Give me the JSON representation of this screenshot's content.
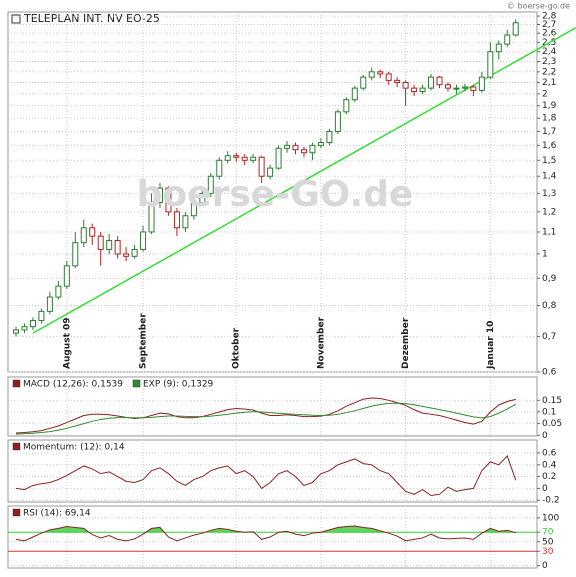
{
  "header": {
    "title": "TELEPLAN INT. NV",
    "symbol": "EO-25",
    "copyright": "© boerse-go.de",
    "watermark": "boerse-GO.de"
  },
  "chart_data": [
    {
      "type": "candlestick",
      "log_scale": true,
      "grid": true,
      "up_color": "#2e7d32",
      "down_color": "#b22222",
      "categories": [
        null,
        null,
        null,
        null,
        null,
        null,
        "August 09",
        null,
        null,
        null,
        null,
        null,
        null,
        null,
        null,
        "September",
        null,
        null,
        null,
        null,
        null,
        null,
        null,
        null,
        null,
        null,
        "Oktober",
        null,
        null,
        null,
        null,
        null,
        null,
        null,
        null,
        null,
        "November",
        null,
        null,
        null,
        null,
        null,
        null,
        null,
        null,
        null,
        "Dezember",
        null,
        null,
        null,
        null,
        null,
        null,
        null,
        null,
        null,
        "Januar 10",
        null,
        null,
        null
      ],
      "ohlc": [
        [
          0.71,
          0.73,
          0.7,
          0.72
        ],
        [
          0.72,
          0.74,
          0.71,
          0.73
        ],
        [
          0.73,
          0.76,
          0.72,
          0.75
        ],
        [
          0.75,
          0.79,
          0.74,
          0.78
        ],
        [
          0.78,
          0.85,
          0.77,
          0.83
        ],
        [
          0.83,
          0.89,
          0.82,
          0.87
        ],
        [
          0.87,
          0.97,
          0.86,
          0.95
        ],
        [
          0.95,
          1.1,
          0.94,
          1.05
        ],
        [
          1.05,
          1.16,
          1.03,
          1.12
        ],
        [
          1.12,
          1.14,
          1.04,
          1.08
        ],
        [
          1.08,
          1.1,
          0.95,
          1.02
        ],
        [
          1.02,
          1.09,
          1.0,
          1.06
        ],
        [
          1.06,
          1.08,
          0.98,
          1.0
        ],
        [
          1.0,
          1.03,
          0.97,
          0.99
        ],
        [
          0.99,
          1.04,
          0.98,
          1.02
        ],
        [
          1.02,
          1.13,
          1.01,
          1.1
        ],
        [
          1.1,
          1.3,
          1.09,
          1.25
        ],
        [
          1.25,
          1.36,
          1.22,
          1.33
        ],
        [
          1.33,
          1.34,
          1.18,
          1.2
        ],
        [
          1.2,
          1.22,
          1.08,
          1.12
        ],
        [
          1.12,
          1.2,
          1.1,
          1.18
        ],
        [
          1.18,
          1.27,
          1.16,
          1.25
        ],
        [
          1.25,
          1.32,
          1.23,
          1.3
        ],
        [
          1.3,
          1.42,
          1.28,
          1.4
        ],
        [
          1.4,
          1.52,
          1.38,
          1.5
        ],
        [
          1.5,
          1.56,
          1.48,
          1.53
        ],
        [
          1.53,
          1.55,
          1.49,
          1.52
        ],
        [
          1.52,
          1.54,
          1.47,
          1.5
        ],
        [
          1.5,
          1.54,
          1.48,
          1.52
        ],
        [
          1.52,
          1.53,
          1.36,
          1.4
        ],
        [
          1.4,
          1.47,
          1.38,
          1.45
        ],
        [
          1.45,
          1.6,
          1.44,
          1.58
        ],
        [
          1.58,
          1.63,
          1.55,
          1.6
        ],
        [
          1.6,
          1.62,
          1.54,
          1.57
        ],
        [
          1.57,
          1.59,
          1.52,
          1.55
        ],
        [
          1.55,
          1.62,
          1.5,
          1.6
        ],
        [
          1.6,
          1.65,
          1.58,
          1.62
        ],
        [
          1.62,
          1.72,
          1.6,
          1.7
        ],
        [
          1.7,
          1.87,
          1.68,
          1.85
        ],
        [
          1.85,
          1.97,
          1.83,
          1.95
        ],
        [
          1.95,
          2.07,
          1.93,
          2.05
        ],
        [
          2.05,
          2.17,
          2.03,
          2.15
        ],
        [
          2.15,
          2.24,
          2.12,
          2.2
        ],
        [
          2.2,
          2.22,
          2.14,
          2.18
        ],
        [
          2.18,
          2.2,
          2.08,
          2.12
        ],
        [
          2.12,
          2.15,
          2.06,
          2.1
        ],
        [
          2.1,
          2.12,
          1.9,
          2.05
        ],
        [
          2.05,
          2.08,
          1.98,
          2.02
        ],
        [
          2.02,
          2.08,
          2.0,
          2.05
        ],
        [
          2.05,
          2.18,
          2.03,
          2.15
        ],
        [
          2.15,
          2.16,
          2.05,
          2.08
        ],
        [
          2.08,
          2.1,
          2.02,
          2.05
        ],
        [
          2.05,
          2.08,
          2.0,
          2.05
        ],
        [
          2.05,
          2.09,
          2.02,
          2.06
        ],
        [
          2.06,
          2.08,
          1.98,
          2.03
        ],
        [
          2.03,
          2.2,
          2.01,
          2.15
        ],
        [
          2.15,
          2.5,
          2.13,
          2.4
        ],
        [
          2.4,
          2.52,
          2.32,
          2.48
        ],
        [
          2.48,
          2.64,
          2.45,
          2.58
        ],
        [
          2.58,
          2.76,
          2.56,
          2.72
        ]
      ],
      "trendline": {
        "x": [
          2,
          59
        ],
        "y": [
          0.71,
          2.3
        ],
        "color": "#33dd33"
      },
      "ylim": [
        0.6,
        2.85
      ],
      "yticks": [
        0.6,
        {
          "value": 0.7,
          "label": "0,7"
        },
        {
          "value": 0.8,
          "label": "0,8"
        },
        {
          "value": 0.9,
          "label": "0,9"
        },
        1,
        {
          "value": 1.1,
          "label": "1,1"
        },
        {
          "value": 1.2,
          "label": "1,2"
        },
        {
          "value": 1.3,
          "label": "1,3"
        },
        {
          "value": 1.4,
          "label": "1,4"
        },
        {
          "value": 1.5,
          "label": "1,5"
        },
        {
          "value": 1.6,
          "label": "1,6"
        },
        {
          "value": 1.7,
          "label": "1,7"
        },
        {
          "value": 1.8,
          "label": "1,8"
        },
        {
          "value": 1.9,
          "label": "1,9"
        },
        2,
        {
          "value": 2.1,
          "label": "2,1"
        },
        {
          "value": 2.2,
          "label": "2,2"
        },
        {
          "value": 2.3,
          "label": "2,3"
        },
        {
          "value": 2.4,
          "label": "2,4"
        },
        {
          "value": 2.5,
          "label": "2,5"
        },
        {
          "value": 2.6,
          "label": "2,6"
        },
        {
          "value": 2.7,
          "label": "2,7"
        },
        {
          "value": 2.8,
          "label": "2,8"
        }
      ]
    },
    {
      "type": "line",
      "grid": true,
      "series": [
        {
          "name": "MACD (12,26): 0,1539",
          "color": "#8b2020",
          "values": [
            0.01,
            0.012,
            0.015,
            0.02,
            0.03,
            0.04,
            0.055,
            0.07,
            0.085,
            0.09,
            0.09,
            0.088,
            0.083,
            0.077,
            0.072,
            0.075,
            0.085,
            0.095,
            0.092,
            0.08,
            0.075,
            0.075,
            0.08,
            0.09,
            0.1,
            0.11,
            0.115,
            0.112,
            0.108,
            0.095,
            0.085,
            0.085,
            0.088,
            0.085,
            0.08,
            0.08,
            0.082,
            0.09,
            0.105,
            0.125,
            0.14,
            0.155,
            0.16,
            0.158,
            0.15,
            0.14,
            0.128,
            0.11,
            0.095,
            0.09,
            0.085,
            0.075,
            0.065,
            0.055,
            0.048,
            0.06,
            0.1,
            0.13,
            0.145,
            0.154
          ]
        },
        {
          "name": "EXP (9): 0,1329",
          "color": "#2e8b2e",
          "values": [
            0.005,
            0.007,
            0.009,
            0.012,
            0.016,
            0.022,
            0.03,
            0.04,
            0.05,
            0.06,
            0.068,
            0.073,
            0.076,
            0.076,
            0.075,
            0.075,
            0.077,
            0.08,
            0.083,
            0.083,
            0.081,
            0.08,
            0.08,
            0.082,
            0.086,
            0.09,
            0.095,
            0.099,
            0.101,
            0.1,
            0.097,
            0.094,
            0.092,
            0.09,
            0.088,
            0.086,
            0.085,
            0.086,
            0.09,
            0.097,
            0.105,
            0.115,
            0.125,
            0.132,
            0.137,
            0.138,
            0.136,
            0.131,
            0.124,
            0.117,
            0.11,
            0.103,
            0.095,
            0.087,
            0.079,
            0.075,
            0.08,
            0.095,
            0.113,
            0.133
          ]
        }
      ],
      "ylim": [
        -0.003,
        0.25
      ],
      "yticks": [
        0,
        0.05,
        0.1,
        0.15
      ]
    },
    {
      "type": "line",
      "grid": true,
      "series": [
        {
          "name": "Momentum: (12): 0,14",
          "color": "#8b2020",
          "values": [
            0,
            -0.02,
            0.05,
            0.08,
            0.1,
            0.15,
            0.22,
            0.3,
            0.38,
            0.33,
            0.25,
            0.28,
            0.2,
            0.12,
            0.1,
            0.15,
            0.3,
            0.35,
            0.25,
            0.12,
            0.05,
            0.15,
            0.2,
            0.3,
            0.35,
            0.38,
            0.25,
            0.3,
            0.2,
            0.0,
            0.1,
            0.25,
            0.3,
            0.2,
            0.05,
            0.1,
            0.25,
            0.3,
            0.4,
            0.45,
            0.5,
            0.42,
            0.4,
            0.3,
            0.25,
            0.1,
            -0.05,
            -0.1,
            -0.02,
            -0.12,
            -0.1,
            0.02,
            -0.05,
            -0.02,
            0.0,
            0.3,
            0.45,
            0.4,
            0.55,
            0.14
          ]
        }
      ],
      "ylim": [
        -0.23,
        0.82
      ],
      "yticks": [
        -0.2,
        0,
        0.2,
        0.4,
        0.6
      ]
    },
    {
      "type": "line",
      "grid": true,
      "series": [
        {
          "name": "RSI (14): 69,14",
          "color": "#8b2020",
          "values": [
            55,
            52,
            60,
            68,
            75,
            78,
            82,
            80,
            78,
            65,
            58,
            63,
            55,
            52,
            56,
            66,
            78,
            80,
            60,
            52,
            58,
            64,
            68,
            74,
            78,
            76,
            72,
            70,
            71,
            55,
            60,
            70,
            72,
            66,
            63,
            68,
            70,
            75,
            80,
            82,
            83,
            80,
            78,
            73,
            68,
            62,
            52,
            55,
            58,
            66,
            58,
            56,
            57,
            58,
            55,
            68,
            78,
            72,
            74,
            69
          ]
        }
      ],
      "bands": [
        {
          "value": 70,
          "color": "#33cc33"
        },
        {
          "value": 30,
          "color": "#e03030"
        }
      ],
      "ylim": [
        -5,
        125
      ],
      "yticks": [
        0,
        30,
        50,
        70,
        100
      ]
    }
  ]
}
